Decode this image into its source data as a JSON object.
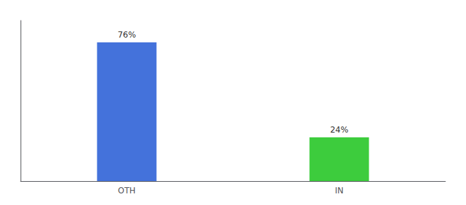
{
  "chart_data": {
    "type": "bar",
    "categories": [
      "OTH",
      "IN"
    ],
    "values": [
      76,
      24
    ],
    "value_labels": [
      "76%",
      "24%"
    ],
    "colors": [
      "#4472db",
      "#3dcc3d"
    ],
    "ylim": [
      0,
      88
    ],
    "grid": false,
    "data_labels": true,
    "tick_labels": "x"
  }
}
